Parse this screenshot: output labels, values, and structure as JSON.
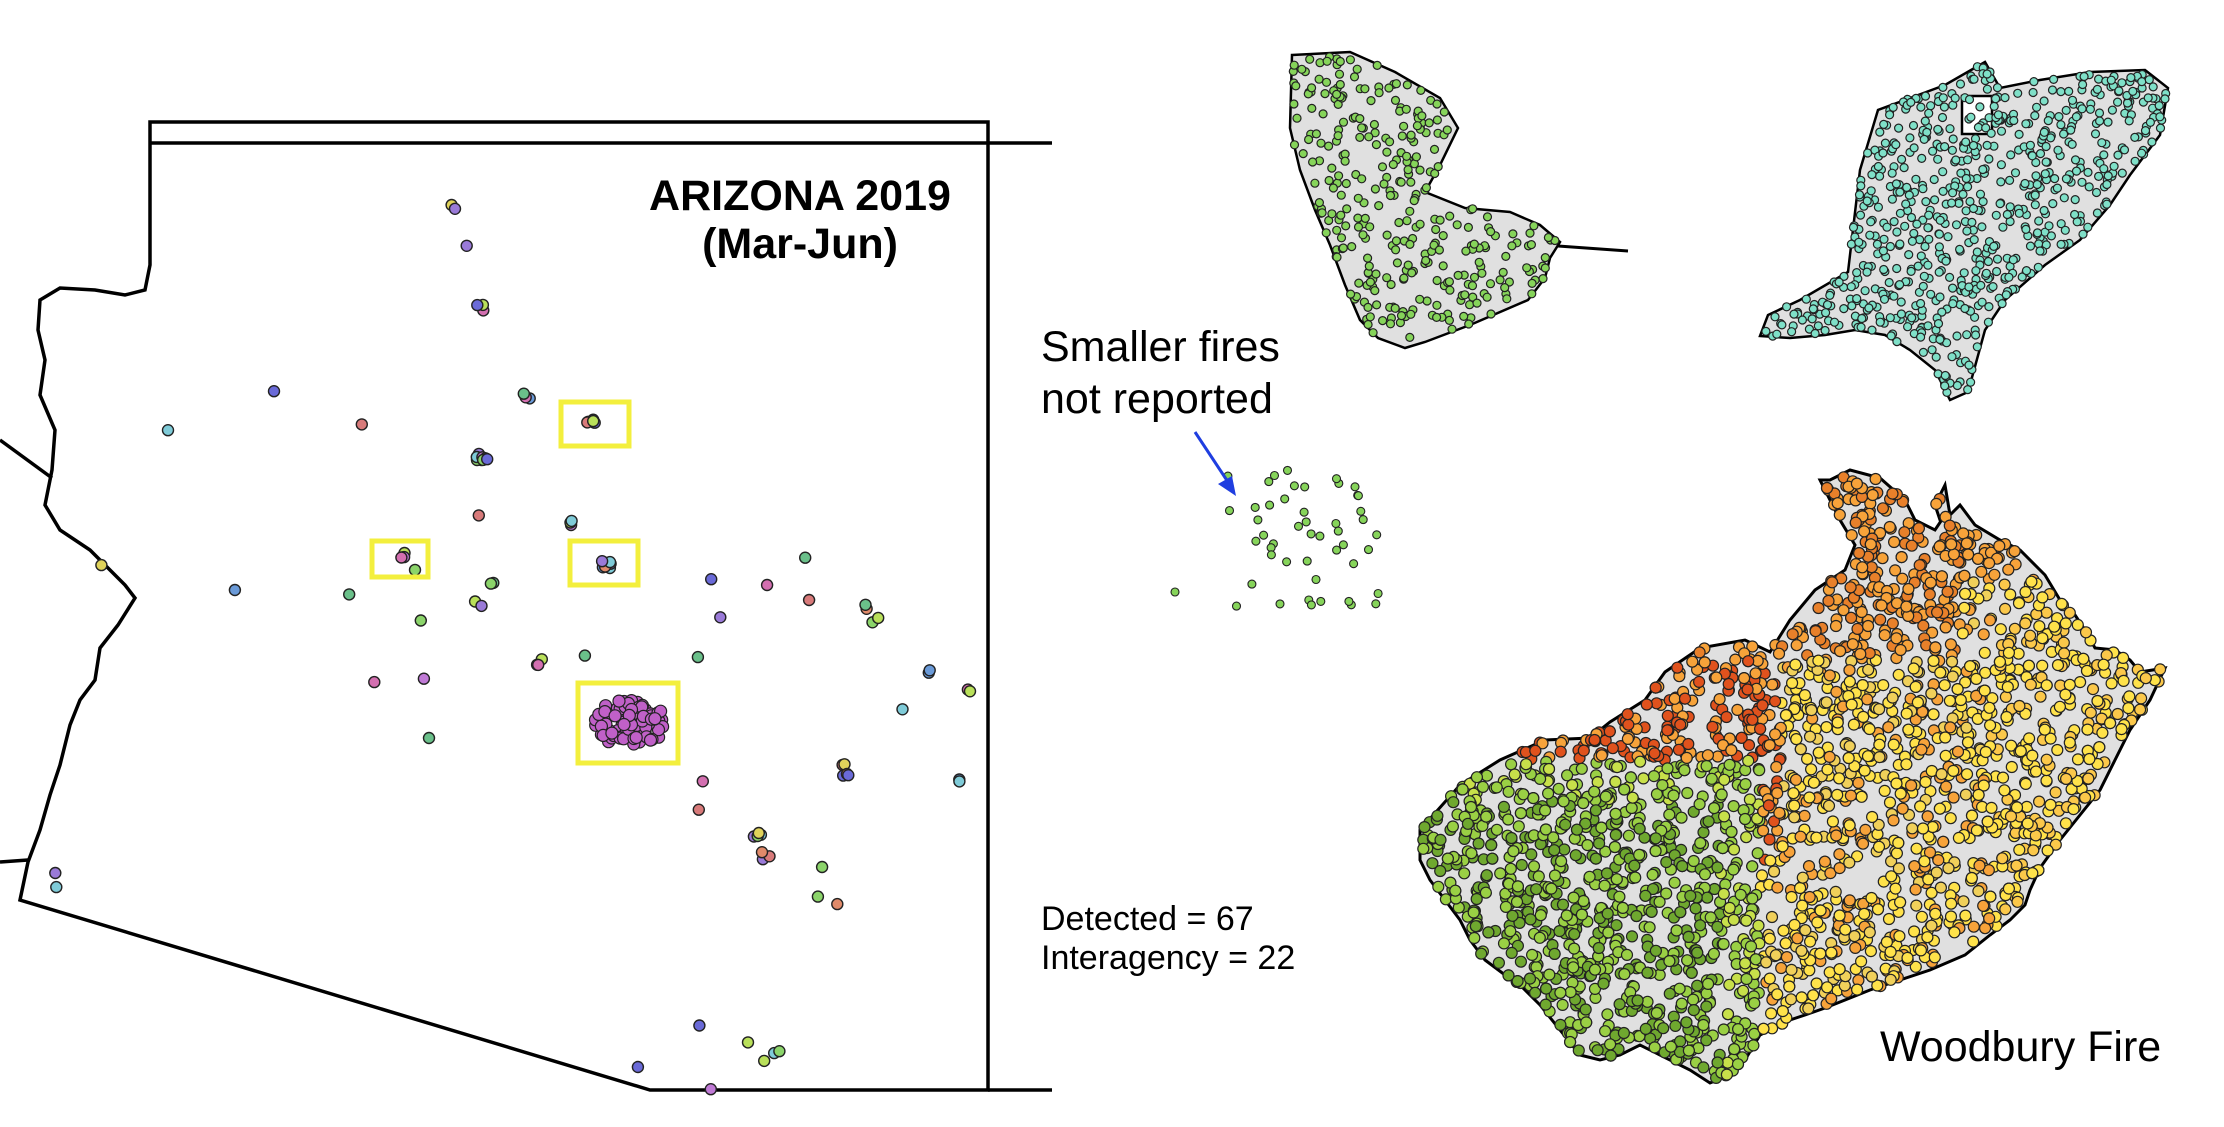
{
  "arizona_panel": {
    "title_line1": "ARIZONA 2019",
    "title_line2": "(Mar-Jun)"
  },
  "annotation": {
    "line1": "Smaller fires",
    "line2": "not reported"
  },
  "stats": {
    "detected": "Detected = 67",
    "interagency": "Interagency = 22"
  },
  "fire_labels": {
    "woodbury": "Woodbury Fire"
  },
  "colors": {
    "highlight_box": "#f3ef3d",
    "arrow": "#1f3ee0",
    "perimeter_fill": "#e0e0e0",
    "green_points": "#86d45a",
    "teal_points": "#7fe0c8",
    "woodbury_gradient": [
      "#9ad044",
      "#6fa82f",
      "#ffe24a",
      "#f7a33a",
      "#e0521d"
    ]
  }
}
